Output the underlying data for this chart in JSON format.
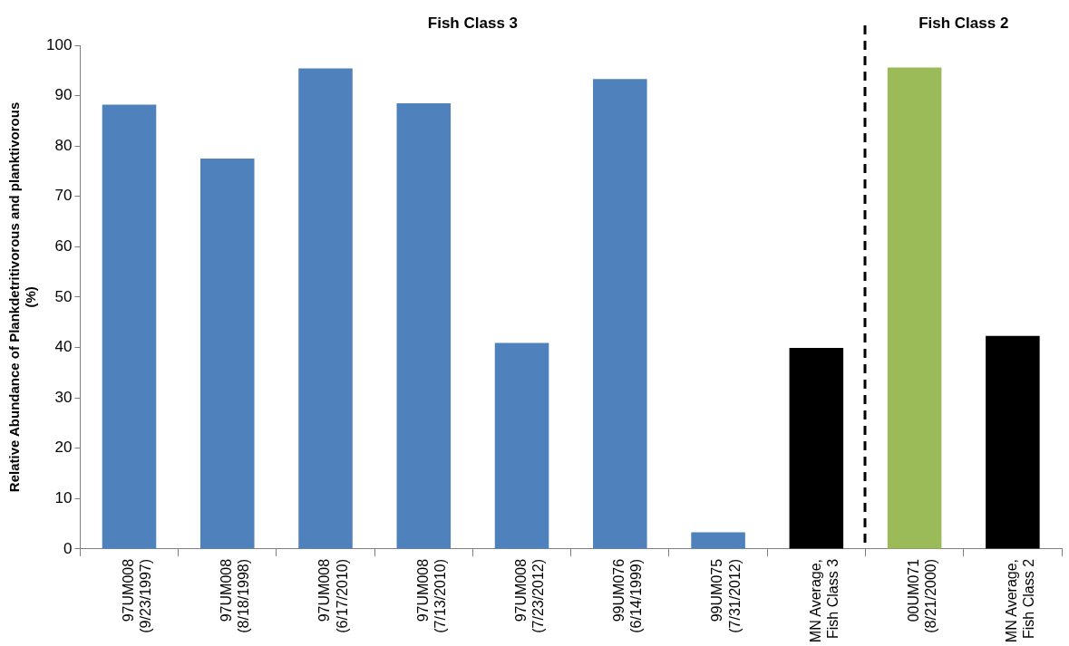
{
  "chart_data": {
    "type": "bar",
    "ylabel": "Relative Abundance of Plankdetritivorous and planktivorous (%)",
    "categories": [
      "97UM008\n(9/23/1997)",
      "97UM008\n(8/18/1998)",
      "97UM008\n(6/17/2010)",
      "97UM008\n(7/13/2010)",
      "97UM008\n(7/23/2012)",
      "99UM076\n(6/14/1999)",
      "99UM075\n(7/31/2012)",
      "MN Average,\nFish Class 3",
      "00UM071\n(8/21/2000)",
      "MN Average,\nFish Class 2"
    ],
    "values": [
      88.2,
      77.5,
      95.4,
      88.5,
      40.9,
      93.3,
      3.3,
      39.9,
      95.6,
      42.3
    ],
    "colors": [
      "#4f81bd",
      "#4f81bd",
      "#4f81bd",
      "#4f81bd",
      "#4f81bd",
      "#4f81bd",
      "#4f81bd",
      "#000000",
      "#9bbb59",
      "#000000"
    ],
    "ylim": [
      0,
      100
    ],
    "yticks": [
      0,
      10,
      20,
      30,
      40,
      50,
      60,
      70,
      80,
      90,
      100
    ],
    "grid": false,
    "legend": false,
    "annotations": [
      "Fish Class 3",
      "Fish Class 2"
    ]
  }
}
